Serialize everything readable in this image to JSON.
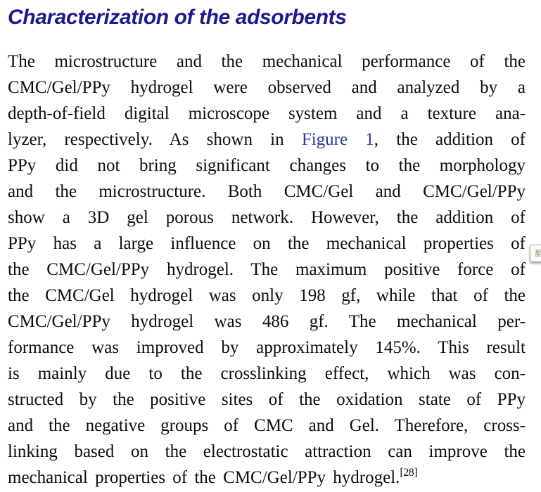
{
  "page": {
    "background": "#ffffff"
  },
  "heading": {
    "text": "Characterization of the adsorbents",
    "color": "#1c1a8e"
  },
  "paragraph": {
    "text_color": "#0e0e0e",
    "figure_link_color": "#2b3a96",
    "lines": [
      {
        "segments": [
          {
            "t": "The microstructure and the mechanical performance of the"
          }
        ]
      },
      {
        "segments": [
          {
            "t": "CMC/Gel/PPy hydrogel were observed and analyzed by a"
          }
        ]
      },
      {
        "segments": [
          {
            "t": "depth-of-field digital microscope system and a texture ana-"
          }
        ]
      },
      {
        "segments": [
          {
            "t": "lyzer, respectively. As shown in "
          },
          {
            "t": "Figure 1",
            "type": "link"
          },
          {
            "t": ", the addition of"
          }
        ]
      },
      {
        "segments": [
          {
            "t": "PPy did not bring significant changes to the morphology"
          }
        ]
      },
      {
        "segments": [
          {
            "t": "and the microstructure. Both CMC/Gel and CMC/Gel/PPy"
          }
        ]
      },
      {
        "segments": [
          {
            "t": "show a 3D gel porous network. However, the addition of"
          }
        ]
      },
      {
        "segments": [
          {
            "t": "PPy has a large influence on the mechanical properties of"
          }
        ]
      },
      {
        "segments": [
          {
            "t": "the CMC/Gel/PPy hydrogel. The maximum positive force of"
          }
        ]
      },
      {
        "segments": [
          {
            "t": "the CMC/Gel hydrogel was only 198 gf, while that of the"
          }
        ]
      },
      {
        "segments": [
          {
            "t": "CMC/Gel/PPy hydrogel was 486 gf. The mechanical per-"
          }
        ]
      },
      {
        "segments": [
          {
            "t": "formance was improved by approximately 145%. This result"
          }
        ]
      },
      {
        "segments": [
          {
            "t": "is mainly due to the crosslinking effect, which was con-"
          }
        ]
      },
      {
        "segments": [
          {
            "t": "structed by the positive sites of the oxidation state of PPy"
          }
        ]
      },
      {
        "segments": [
          {
            "t": "and the negative groups of CMC and Gel. Therefore, cross-"
          }
        ]
      },
      {
        "segments": [
          {
            "t": "linking based on the electrostatic attraction can improve the"
          }
        ]
      },
      {
        "last": true,
        "segments": [
          {
            "t": "mechanical properties of the CMC/Gel/PPy hydrogel."
          },
          {
            "t": "[28]",
            "type": "sup"
          }
        ]
      }
    ]
  },
  "overlay_widget": {
    "glyph": "翻"
  }
}
